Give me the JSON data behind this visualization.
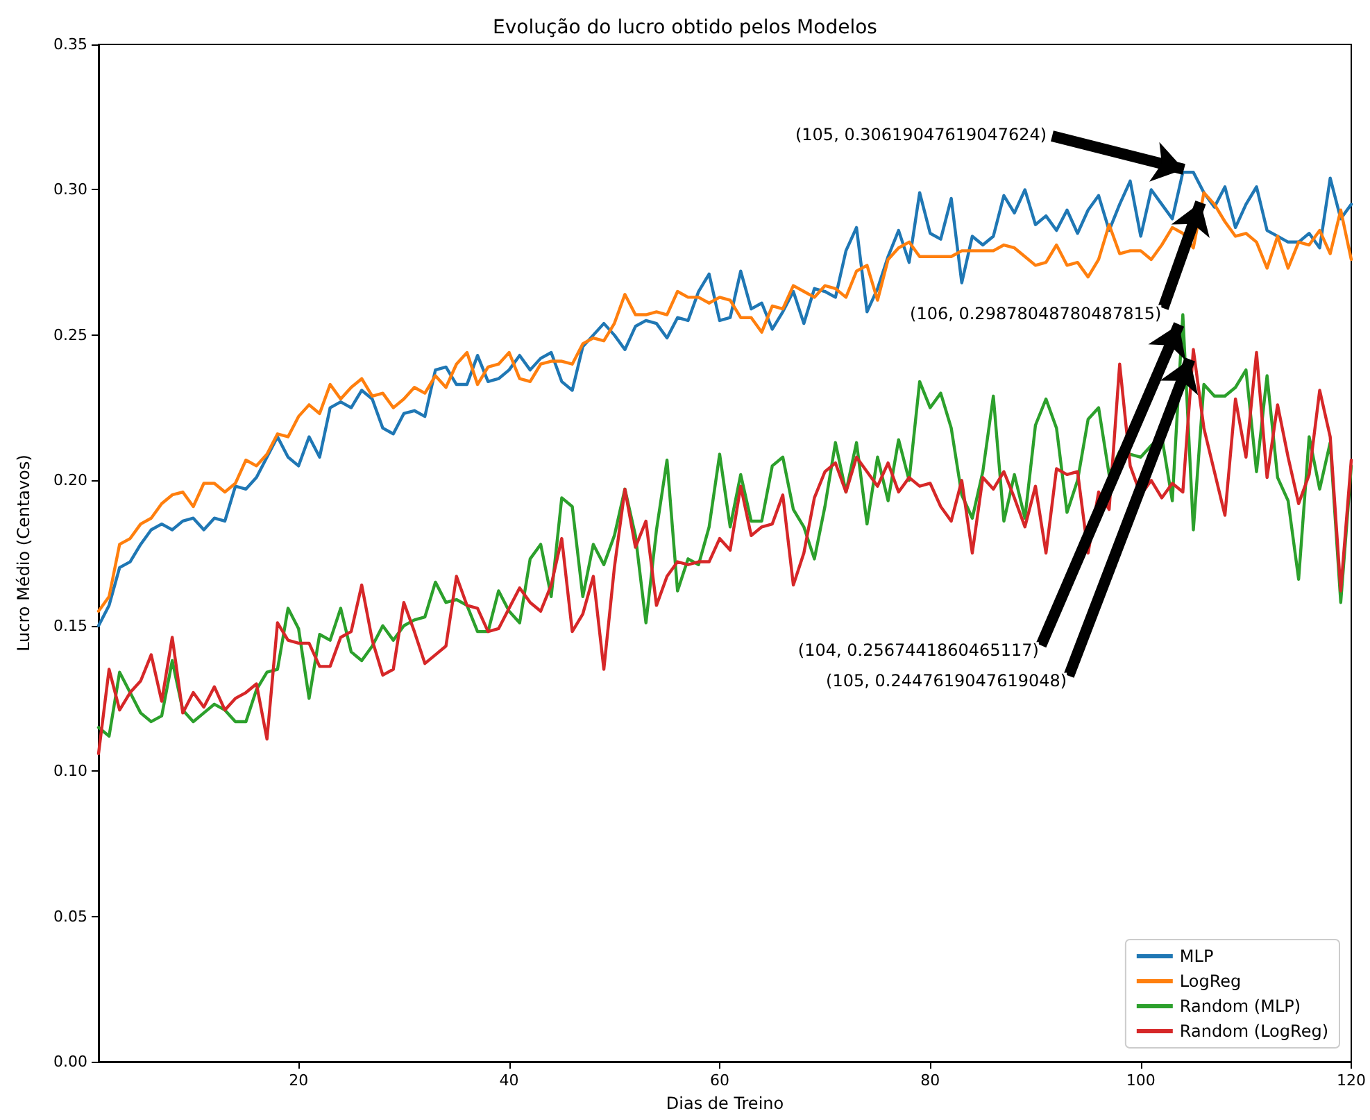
{
  "chart_data": {
    "type": "line",
    "title": "Evolução do lucro obtido pelos Modelos",
    "xlabel": "Dias de Treino",
    "ylabel": "Lucro Médio (Centavos)",
    "x": [
      1,
      2,
      3,
      4,
      5,
      6,
      7,
      8,
      9,
      10,
      11,
      12,
      13,
      14,
      15,
      16,
      17,
      18,
      19,
      20,
      21,
      22,
      23,
      24,
      25,
      26,
      27,
      28,
      29,
      30,
      31,
      32,
      33,
      34,
      35,
      36,
      37,
      38,
      39,
      40,
      41,
      42,
      43,
      44,
      45,
      46,
      47,
      48,
      49,
      50,
      51,
      52,
      53,
      54,
      55,
      56,
      57,
      58,
      59,
      60,
      61,
      62,
      63,
      64,
      65,
      66,
      67,
      68,
      69,
      70,
      71,
      72,
      73,
      74,
      75,
      76,
      77,
      78,
      79,
      80,
      81,
      82,
      83,
      84,
      85,
      86,
      87,
      88,
      89,
      90,
      91,
      92,
      93,
      94,
      95,
      96,
      97,
      98,
      99,
      100,
      101,
      102,
      103,
      104,
      105,
      106,
      107,
      108,
      109,
      110,
      111,
      112,
      113,
      114,
      115,
      116,
      117,
      118,
      119,
      120
    ],
    "series": [
      {
        "name": "MLP",
        "color": "#1f77b4",
        "values": [
          0.15,
          0.157,
          0.17,
          0.172,
          0.178,
          0.183,
          0.185,
          0.183,
          0.186,
          0.187,
          0.183,
          0.187,
          0.186,
          0.198,
          0.197,
          0.201,
          0.208,
          0.215,
          0.208,
          0.205,
          0.215,
          0.208,
          0.225,
          0.227,
          0.225,
          0.231,
          0.228,
          0.218,
          0.216,
          0.223,
          0.224,
          0.222,
          0.238,
          0.239,
          0.233,
          0.233,
          0.243,
          0.234,
          0.235,
          0.238,
          0.243,
          0.238,
          0.242,
          0.244,
          0.234,
          0.231,
          0.246,
          0.25,
          0.254,
          0.25,
          0.245,
          0.253,
          0.255,
          0.254,
          0.249,
          0.256,
          0.255,
          0.265,
          0.271,
          0.255,
          0.256,
          0.272,
          0.259,
          0.261,
          0.252,
          0.258,
          0.265,
          0.254,
          0.266,
          0.265,
          0.263,
          0.279,
          0.287,
          0.258,
          0.266,
          0.277,
          0.286,
          0.275,
          0.299,
          0.285,
          0.283,
          0.297,
          0.268,
          0.284,
          0.281,
          0.284,
          0.298,
          0.292,
          0.3,
          0.288,
          0.291,
          0.286,
          0.293,
          0.285,
          0.293,
          0.298,
          0.286,
          0.295,
          0.303,
          0.284,
          0.3,
          0.295,
          0.29,
          0.306,
          0.306,
          0.299,
          0.294,
          0.301,
          0.287,
          0.295,
          0.301,
          0.286,
          0.284,
          0.282,
          0.282,
          0.285,
          0.28,
          0.304,
          0.29,
          0.295
        ]
      },
      {
        "name": "LogReg",
        "color": "#ff7f0e",
        "values": [
          0.155,
          0.16,
          0.178,
          0.18,
          0.185,
          0.187,
          0.192,
          0.195,
          0.196,
          0.191,
          0.199,
          0.199,
          0.196,
          0.199,
          0.207,
          0.205,
          0.209,
          0.216,
          0.215,
          0.222,
          0.226,
          0.223,
          0.233,
          0.228,
          0.232,
          0.235,
          0.229,
          0.23,
          0.225,
          0.228,
          0.232,
          0.23,
          0.236,
          0.232,
          0.24,
          0.244,
          0.233,
          0.239,
          0.24,
          0.244,
          0.235,
          0.234,
          0.24,
          0.241,
          0.241,
          0.24,
          0.247,
          0.249,
          0.248,
          0.254,
          0.264,
          0.257,
          0.257,
          0.258,
          0.257,
          0.265,
          0.263,
          0.263,
          0.261,
          0.263,
          0.262,
          0.256,
          0.256,
          0.251,
          0.26,
          0.259,
          0.267,
          0.265,
          0.263,
          0.267,
          0.266,
          0.263,
          0.272,
          0.274,
          0.262,
          0.276,
          0.28,
          0.282,
          0.277,
          0.277,
          0.277,
          0.277,
          0.279,
          0.279,
          0.279,
          0.279,
          0.281,
          0.28,
          0.277,
          0.274,
          0.275,
          0.281,
          0.274,
          0.275,
          0.27,
          0.276,
          0.288,
          0.278,
          0.279,
          0.279,
          0.276,
          0.281,
          0.287,
          0.285,
          0.28,
          0.299,
          0.295,
          0.289,
          0.284,
          0.285,
          0.282,
          0.273,
          0.284,
          0.273,
          0.282,
          0.281,
          0.286,
          0.278,
          0.293,
          0.276
        ]
      },
      {
        "name": "Random (MLP)",
        "color": "#2ca02c",
        "values": [
          0.115,
          0.112,
          0.134,
          0.127,
          0.12,
          0.117,
          0.119,
          0.138,
          0.121,
          0.117,
          0.12,
          0.123,
          0.121,
          0.117,
          0.117,
          0.128,
          0.134,
          0.135,
          0.156,
          0.149,
          0.125,
          0.147,
          0.145,
          0.156,
          0.141,
          0.138,
          0.143,
          0.15,
          0.145,
          0.15,
          0.152,
          0.153,
          0.165,
          0.158,
          0.159,
          0.157,
          0.148,
          0.148,
          0.162,
          0.155,
          0.151,
          0.173,
          0.178,
          0.16,
          0.194,
          0.191,
          0.16,
          0.178,
          0.171,
          0.181,
          0.197,
          0.181,
          0.151,
          0.183,
          0.207,
          0.162,
          0.173,
          0.171,
          0.184,
          0.209,
          0.184,
          0.202,
          0.186,
          0.186,
          0.205,
          0.208,
          0.19,
          0.184,
          0.173,
          0.191,
          0.213,
          0.196,
          0.213,
          0.185,
          0.208,
          0.193,
          0.214,
          0.2,
          0.234,
          0.225,
          0.23,
          0.218,
          0.195,
          0.187,
          0.203,
          0.229,
          0.186,
          0.202,
          0.187,
          0.219,
          0.228,
          0.218,
          0.189,
          0.2,
          0.221,
          0.225,
          0.202,
          0.21,
          0.209,
          0.208,
          0.212,
          0.215,
          0.193,
          0.257,
          0.183,
          0.233,
          0.229,
          0.229,
          0.232,
          0.238,
          0.203,
          0.236,
          0.201,
          0.193,
          0.166,
          0.215,
          0.197,
          0.213,
          0.158,
          0.205
        ]
      },
      {
        "name": "Random (LogReg)",
        "color": "#d62728",
        "values": [
          0.106,
          0.135,
          0.121,
          0.127,
          0.131,
          0.14,
          0.124,
          0.146,
          0.12,
          0.127,
          0.122,
          0.129,
          0.121,
          0.125,
          0.127,
          0.13,
          0.111,
          0.151,
          0.145,
          0.144,
          0.144,
          0.136,
          0.136,
          0.146,
          0.148,
          0.164,
          0.145,
          0.133,
          0.135,
          0.158,
          0.148,
          0.137,
          0.14,
          0.143,
          0.167,
          0.157,
          0.156,
          0.148,
          0.149,
          0.156,
          0.163,
          0.158,
          0.155,
          0.164,
          0.18,
          0.148,
          0.154,
          0.167,
          0.135,
          0.17,
          0.197,
          0.177,
          0.186,
          0.157,
          0.167,
          0.172,
          0.171,
          0.172,
          0.172,
          0.18,
          0.176,
          0.198,
          0.181,
          0.184,
          0.185,
          0.195,
          0.164,
          0.175,
          0.194,
          0.203,
          0.206,
          0.196,
          0.208,
          0.203,
          0.198,
          0.206,
          0.196,
          0.201,
          0.198,
          0.199,
          0.191,
          0.186,
          0.2,
          0.175,
          0.201,
          0.197,
          0.203,
          0.194,
          0.184,
          0.198,
          0.175,
          0.204,
          0.202,
          0.203,
          0.175,
          0.196,
          0.19,
          0.24,
          0.205,
          0.195,
          0.2,
          0.194,
          0.199,
          0.196,
          0.245,
          0.218,
          0.203,
          0.188,
          0.228,
          0.208,
          0.244,
          0.201,
          0.226,
          0.208,
          0.192,
          0.202,
          0.231,
          0.215,
          0.162,
          0.207
        ]
      }
    ],
    "xlim": [
      1,
      120
    ],
    "xticks": [
      20,
      40,
      60,
      80,
      100,
      120
    ],
    "ylim": [
      0,
      0.35
    ],
    "yticks": [
      {
        "value": 0,
        "label": "0.00"
      },
      {
        "value": 0.05,
        "label": "0.05"
      },
      {
        "value": 0.1,
        "label": "0.10"
      },
      {
        "value": 0.15,
        "label": "0.15"
      },
      {
        "value": 0.2,
        "label": "0.20"
      },
      {
        "value": 0.25,
        "label": "0.25"
      },
      {
        "value": 0.3,
        "label": "0.30"
      },
      {
        "value": 0.35,
        "label": "0.35"
      }
    ],
    "annotations": [
      {
        "text": "(105, 0.30619047619047624)",
        "x": 105,
        "y": 0.30619047619047624
      },
      {
        "text": "(106, 0.29878048780487815)",
        "x": 106,
        "y": 0.29878048780487815
      },
      {
        "text": "(104, 0.2567441860465117)",
        "x": 104,
        "y": 0.2567441860465117
      },
      {
        "text": "(105, 0.2447619047619048)",
        "x": 105,
        "y": 0.2447619047619048
      }
    ],
    "grid": false,
    "legend": "bottom right",
    "marker": "none",
    "line_style": "solid"
  }
}
